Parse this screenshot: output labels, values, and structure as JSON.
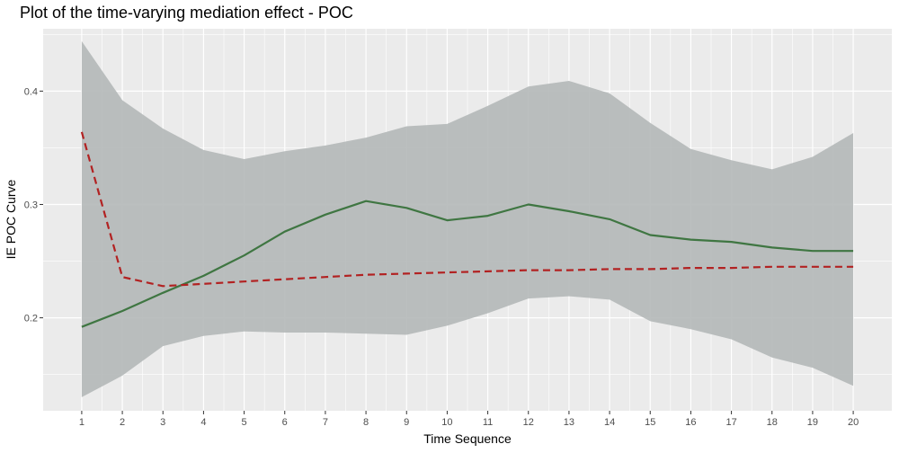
{
  "chart_data": {
    "type": "line",
    "title": "Plot of the time-varying mediation effect - POC",
    "xlabel": "Time Sequence",
    "ylabel": "IE POC Curve",
    "x": [
      1,
      2,
      3,
      4,
      5,
      6,
      7,
      8,
      9,
      10,
      11,
      12,
      13,
      14,
      15,
      16,
      17,
      18,
      19,
      20
    ],
    "x_tick_labels": [
      "1",
      "2",
      "3",
      "4",
      "5",
      "6",
      "7",
      "8",
      "9",
      "10",
      "11",
      "12",
      "13",
      "14",
      "15",
      "16",
      "17",
      "18",
      "19",
      "20"
    ],
    "y_ticks": [
      0.2,
      0.3,
      0.4
    ],
    "y_tick_labels": [
      "0.2",
      "0.3",
      "0.4"
    ],
    "xlim": [
      0.05,
      20.95
    ],
    "ylim": [
      0.118,
      0.455
    ],
    "grid": true,
    "band": {
      "upper": [
        0.444,
        0.392,
        0.367,
        0.348,
        0.34,
        0.347,
        0.352,
        0.359,
        0.369,
        0.371,
        0.387,
        0.404,
        0.409,
        0.398,
        0.372,
        0.349,
        0.339,
        0.331,
        0.342,
        0.363
      ],
      "lower": [
        0.13,
        0.149,
        0.175,
        0.184,
        0.188,
        0.187,
        0.187,
        0.186,
        0.185,
        0.193,
        0.204,
        0.217,
        0.219,
        0.216,
        0.197,
        0.19,
        0.181,
        0.165,
        0.156,
        0.14
      ],
      "color": "#b4b8b8"
    },
    "series": [
      {
        "values": [
          0.192,
          0.206,
          0.222,
          0.237,
          0.255,
          0.276,
          0.291,
          0.303,
          0.297,
          0.286,
          0.29,
          0.3,
          0.294,
          0.287,
          0.273,
          0.269,
          0.267,
          0.262,
          0.259,
          0.259
        ],
        "color": "#3f7642",
        "style": "solid"
      },
      {
        "values": [
          0.364,
          0.236,
          0.228,
          0.23,
          0.232,
          0.234,
          0.236,
          0.238,
          0.239,
          0.24,
          0.241,
          0.242,
          0.242,
          0.243,
          0.243,
          0.244,
          0.244,
          0.245,
          0.245,
          0.245
        ],
        "color": "#b22222",
        "style": "dashed"
      }
    ],
    "panel_background": "#ebebeb",
    "grid_color": "#ffffff"
  }
}
